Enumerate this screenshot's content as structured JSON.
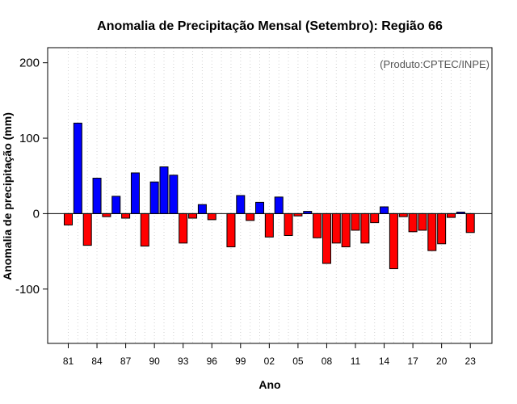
{
  "chart_data": {
    "type": "bar",
    "title": "Anomalia de Precipitação Mensal (Setembro): Região 66",
    "xlabel": "Ano",
    "ylabel": "Anomalia de precipitação (mm)",
    "annotation": "(Produto:CPTEC/INPE)",
    "ylim": [
      -172,
      220
    ],
    "yticks": [
      -100,
      0,
      100,
      200
    ],
    "xtick_labels": [
      "81",
      "84",
      "87",
      "90",
      "93",
      "96",
      "99",
      "02",
      "05",
      "08",
      "11",
      "14",
      "17",
      "20",
      "23"
    ],
    "grid": "vertical dotted",
    "positive_color": "#0000ff",
    "negative_color": "#ff0000",
    "years": [
      1981,
      1982,
      1983,
      1984,
      1985,
      1986,
      1987,
      1988,
      1989,
      1990,
      1991,
      1992,
      1993,
      1994,
      1995,
      1996,
      1997,
      1998,
      1999,
      2000,
      2001,
      2002,
      2003,
      2004,
      2005,
      2006,
      2007,
      2008,
      2009,
      2010,
      2011,
      2012,
      2013,
      2014,
      2015,
      2016,
      2017,
      2018,
      2019,
      2020,
      2021,
      2022,
      2023
    ],
    "values": [
      -15,
      120,
      -42,
      47,
      -4,
      23,
      -6,
      54,
      -43,
      42,
      62,
      51,
      -39,
      -6,
      12,
      -8,
      0,
      -44,
      24,
      -9,
      15,
      -31,
      22,
      -29,
      -3,
      3,
      -32,
      -66,
      -39,
      -44,
      -22,
      -39,
      -12,
      9,
      -73,
      -4,
      -24,
      -22,
      -49,
      -40,
      -5,
      2,
      -25
    ]
  }
}
